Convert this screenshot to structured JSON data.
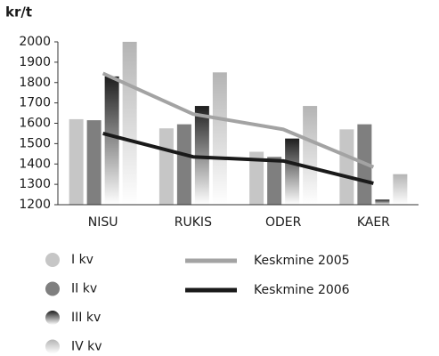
{
  "chart_data": {
    "type": "bar",
    "y_label": "kr/t",
    "categories": [
      "NISU",
      "RUKIS",
      "ODER",
      "KAER"
    ],
    "series": [
      {
        "name": "I kv",
        "color": "#c6c6c6",
        "values": [
          1620,
          1575,
          1460,
          1570
        ]
      },
      {
        "name": "II kv",
        "color": "#7f7f7f",
        "values": [
          1615,
          1595,
          1435,
          1595
        ]
      },
      {
        "name": "III kv",
        "color": "#1e1e1e",
        "gradient": true,
        "values": [
          1830,
          1685,
          1525,
          1225
        ]
      },
      {
        "name": "IV kv",
        "color": "#b4b4b4",
        "gradient": true,
        "values": [
          2000,
          1850,
          1685,
          1350
        ]
      },
      {
        "name": "Keskmine 2005",
        "type": "line",
        "color": "#a3a3a3",
        "values": [
          1845,
          1645,
          1570,
          1385
        ]
      },
      {
        "name": "Keskmine 2006",
        "type": "line",
        "color": "#1a1a1a",
        "values": [
          1550,
          1435,
          1415,
          1305
        ]
      }
    ],
    "ylim": [
      1200,
      2000
    ],
    "yticks": [
      1200,
      1300,
      1400,
      1500,
      1600,
      1700,
      1800,
      1900,
      2000
    ]
  }
}
